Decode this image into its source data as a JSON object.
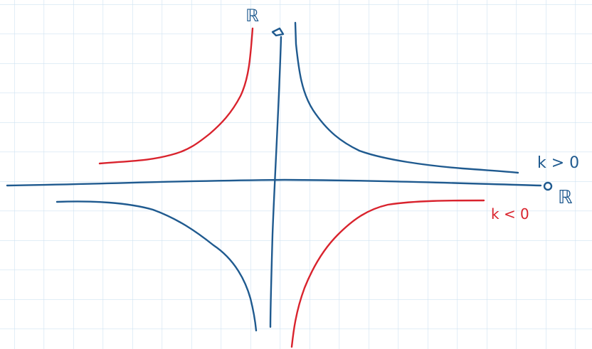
{
  "labels": {
    "y_axis": "ℝ",
    "x_axis": "ℝ",
    "positive": "k > 0",
    "negative": "k < 0"
  }
}
